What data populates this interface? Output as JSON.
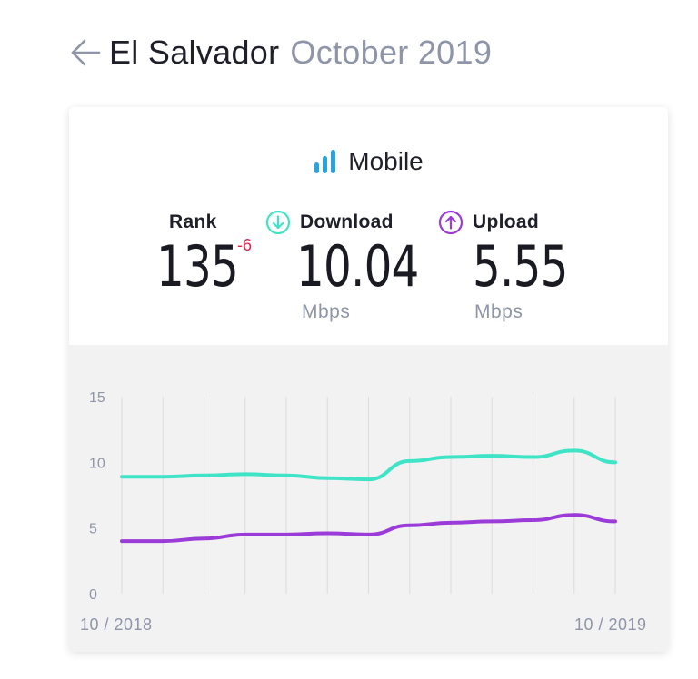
{
  "header": {
    "country": "El Salvador",
    "period": "October 2019"
  },
  "card": {
    "title": "Mobile",
    "rank": {
      "label": "Rank",
      "value": "135",
      "change": "-6"
    },
    "download": {
      "label": "Download",
      "value": "10.04",
      "unit": "Mbps"
    },
    "upload": {
      "label": "Upload",
      "value": "5.55",
      "unit": "Mbps"
    }
  },
  "colors": {
    "download": "#3fe3c6",
    "upload": "#9b3bd8",
    "mobile_icon": "#2aa4dc",
    "rank_change": "#e5244c"
  },
  "icons": {
    "back": "arrow-left-icon",
    "mobile": "signal-bars-icon",
    "download": "arrow-down-circle-icon",
    "upload": "arrow-up-circle-icon"
  },
  "chart_data": {
    "type": "line",
    "x": [
      "10/2018",
      "11/2018",
      "12/2018",
      "01/2019",
      "02/2019",
      "03/2019",
      "04/2019",
      "05/2019",
      "06/2019",
      "07/2019",
      "08/2019",
      "09/2019",
      "10/2019"
    ],
    "x_tick_labels": [
      "10 / 2018",
      "10 / 2019"
    ],
    "series": [
      {
        "values": [
          8.9,
          8.9,
          9.0,
          9.1,
          9.0,
          8.8,
          8.7,
          10.1,
          10.4,
          10.5,
          10.4,
          10.9,
          10.0
        ]
      },
      {
        "values": [
          4.0,
          4.0,
          4.2,
          4.5,
          4.5,
          4.6,
          4.5,
          5.2,
          5.4,
          5.5,
          5.6,
          6.0,
          5.5
        ]
      }
    ],
    "ylim": [
      0,
      15
    ],
    "yticks": [
      0,
      5,
      10,
      15
    ],
    "grid": "vertical"
  }
}
